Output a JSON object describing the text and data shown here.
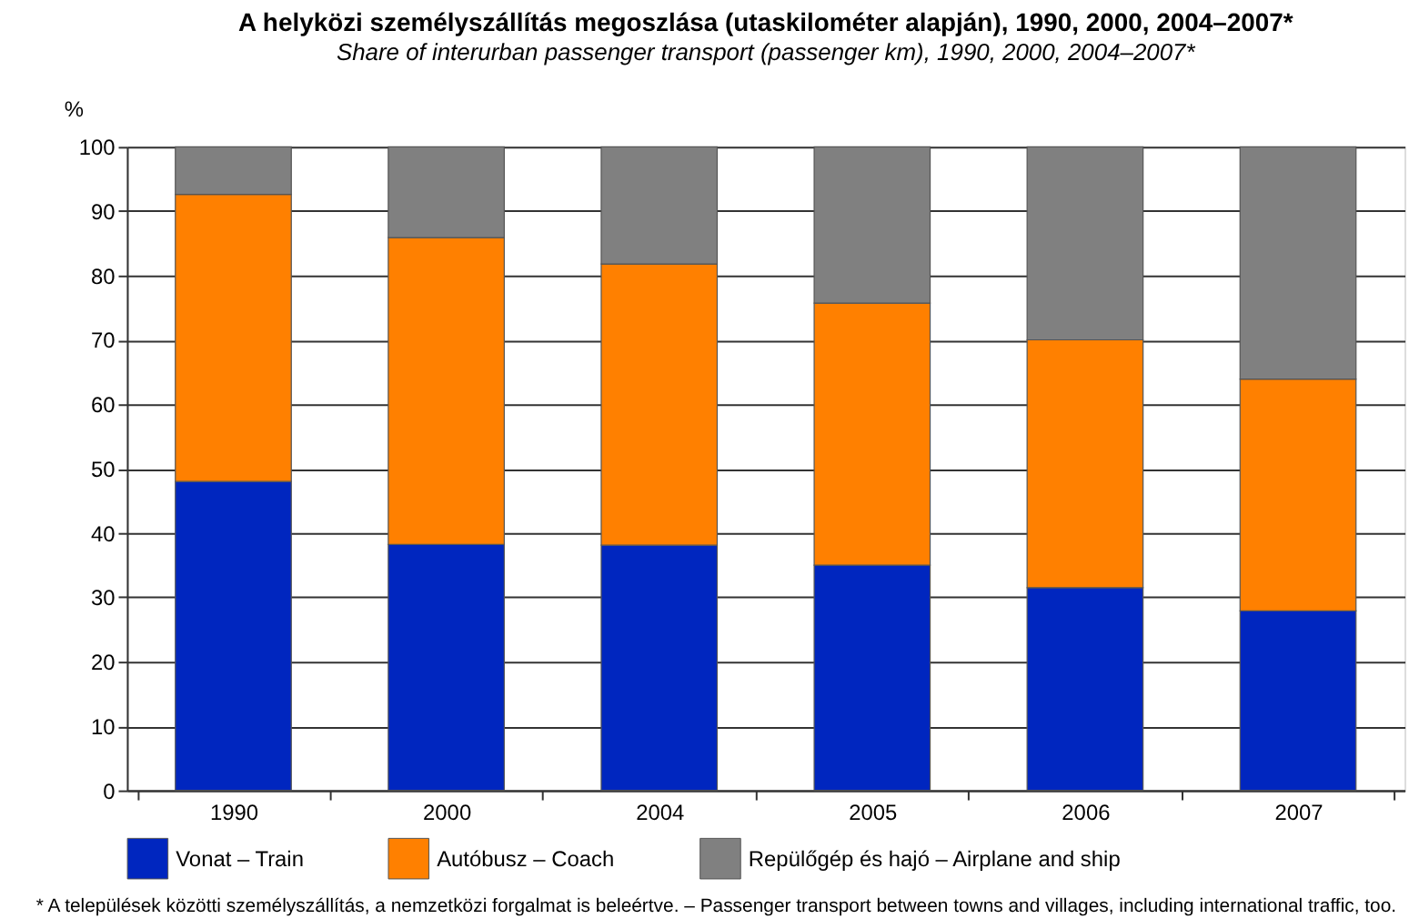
{
  "chart_data": {
    "type": "bar",
    "stacked": true,
    "title": "A helyközi személyszállítás megoszlása (utaskilométer alapján), 1990, 2000, 2004–2007*",
    "subtitle": "Share of interurban passenger transport (passenger km), 1990, 2000, 2004–2007*",
    "ylabel": "%",
    "categories": [
      "1990",
      "2000",
      "2004",
      "2005",
      "2006",
      "2007"
    ],
    "series": [
      {
        "name": "Vonat – Train",
        "color": "#0026bf",
        "values": [
          48,
          38.2,
          38.1,
          35,
          31.5,
          27.9
        ]
      },
      {
        "name": "Autóbusz – Coach",
        "color": "#ff8000",
        "values": [
          44.6,
          47.7,
          43.7,
          40.7,
          38.5,
          36
        ]
      },
      {
        "name": "Repülőgép és hajó – Airplane and ship",
        "color": "#808080",
        "values": [
          7.4,
          14.1,
          18.2,
          24.3,
          30,
          36.1
        ]
      }
    ],
    "ylim": [
      0,
      100
    ],
    "yticks": [
      0,
      10,
      20,
      30,
      40,
      50,
      60,
      70,
      80,
      90,
      100
    ],
    "grid": "y",
    "legend": "bottom",
    "annotations": [
      "* A települések közötti személyszállítás, a nemzetközi forgalmat is beleértve. – Passenger transport between towns and villages, including international traffic, too."
    ]
  }
}
